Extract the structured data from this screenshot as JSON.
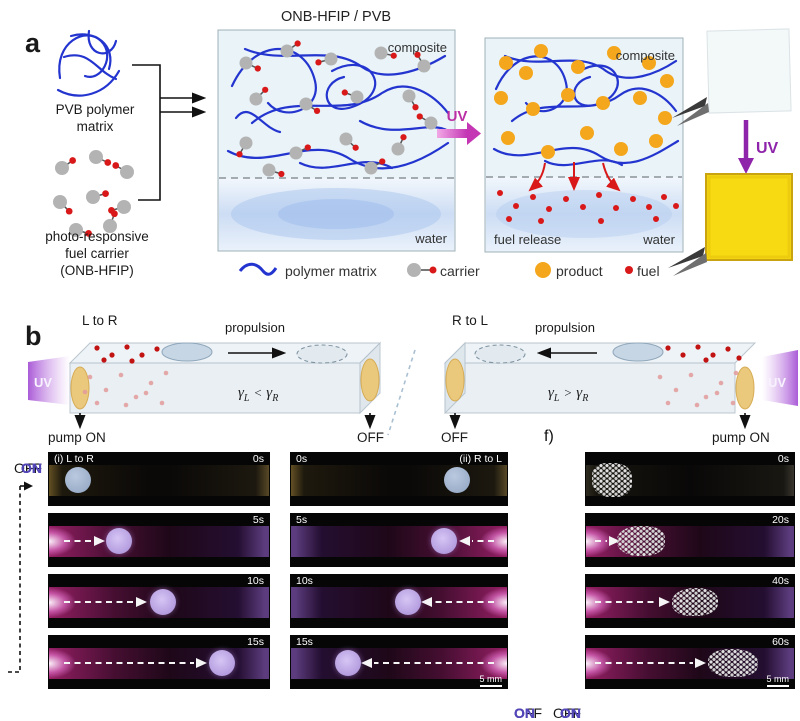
{
  "figure": {
    "panel_a_label": "a",
    "panel_b_label": "b",
    "panel_f_label": "f)"
  },
  "panel_a": {
    "title": "ONB-HFIP / PVB",
    "pvb_label_line1": "PVB polymer",
    "pvb_label_line2": "matrix",
    "carrier_label_line1": "photo-responsive",
    "carrier_label_line2": "fuel carrier",
    "carrier_label_line3": "(ONB-HFIP)",
    "composite_box": {
      "composite": "composite",
      "water": "water"
    },
    "uv_arrow_label": "UV",
    "released_box": {
      "composite": "composite",
      "fuel_release": "fuel release",
      "water": "water"
    },
    "film_uv_label": "UV",
    "legend": {
      "polymer": "polymer matrix",
      "carrier": "carrier",
      "product": "product",
      "fuel": "fuel"
    }
  },
  "panel_b": {
    "left": {
      "direction": "L to R",
      "propulsion": "propulsion",
      "uv": "UV",
      "gamma_symbol": "γ",
      "gamma_sub_left": "L",
      "gamma_op": "<",
      "gamma_sub_right": "R",
      "pump_label": "pump ON",
      "off_label": "OFF"
    },
    "right": {
      "direction": "R to L",
      "propulsion": "propulsion",
      "uv": "UV",
      "gamma_symbol": "γ",
      "gamma_sub_left": "L",
      "gamma_op": ">",
      "gamma_sub_right": "R",
      "pump_label": "pump ON",
      "off_label": "OFF"
    }
  },
  "strips": {
    "i": {
      "title": "(i) L to R",
      "frames": [
        {
          "state": "OFF",
          "time": "0s"
        },
        {
          "state": "ON",
          "time": "5s"
        },
        {
          "state": "ON",
          "time": "10s"
        },
        {
          "state": "ON",
          "time": "15s"
        }
      ]
    },
    "ii": {
      "title": "(ii) R to L",
      "scale_bar": "5 mm",
      "frames": [
        {
          "state": "OFF",
          "time": "0s"
        },
        {
          "state": "ON",
          "time": "5s"
        },
        {
          "state": "ON",
          "time": "10s"
        },
        {
          "state": "ON",
          "time": "15s"
        }
      ]
    },
    "f": {
      "scale_bar": "5 mm",
      "frames": [
        {
          "state": "OFF",
          "time": "0s"
        },
        {
          "state": "ON",
          "time": "20s"
        },
        {
          "state": "ON",
          "time": "40s"
        },
        {
          "state": "ON",
          "time": "60s"
        }
      ]
    }
  },
  "colors": {
    "polymer_blue": "#2334cf",
    "carrier_gray": "#b3b3b3",
    "carrier_link": "#555555",
    "fuel_red": "#d91919",
    "fuel_faded": "#e39a9a",
    "product_orange": "#f4a71c",
    "uv_magenta": "#c238ad",
    "uv_purple": "#8e24aa",
    "film_yellow": "#f7da12",
    "on_label_purple": "#5246b8",
    "box_fill": "#e9f3f8",
    "water_blue": "#aac5ee"
  }
}
